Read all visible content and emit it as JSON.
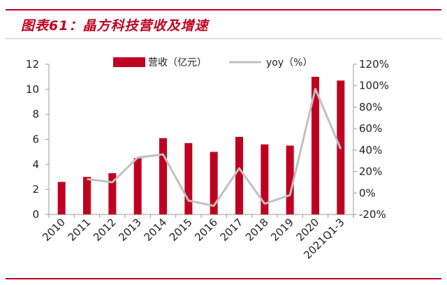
{
  "colors": {
    "accent": "#c00020",
    "bar": "#c00020",
    "line": "#c0c0c0",
    "axis": "#999999"
  },
  "header": {
    "title": "图表61：晶方科技营收及增速"
  },
  "chart_data": {
    "type": "bar",
    "categories": [
      "2010",
      "2011",
      "2012",
      "2013",
      "2014",
      "2015",
      "2016",
      "2017",
      "2018",
      "2019",
      "2020",
      "2021Q1-3"
    ],
    "series": [
      {
        "name": "营收（亿元）",
        "type": "bar",
        "axis": "left",
        "values": [
          2.6,
          3.0,
          3.3,
          4.5,
          6.1,
          5.7,
          5.0,
          6.2,
          5.6,
          5.5,
          11.0,
          10.7
        ]
      },
      {
        "name": "yoy（%）",
        "type": "line",
        "axis": "right",
        "values": [
          null,
          13,
          10,
          33,
          36,
          -7,
          -12,
          23,
          -10,
          -2,
          97,
          41
        ]
      }
    ],
    "y_left": {
      "min": 0,
      "max": 12,
      "ticks": [
        "0",
        "2",
        "4",
        "6",
        "8",
        "10",
        "12"
      ]
    },
    "y_right": {
      "min": -20,
      "max": 120,
      "ticks": [
        "-20%",
        "0%",
        "20%",
        "40%",
        "60%",
        "80%",
        "100%",
        "120%"
      ]
    },
    "legend_position": "top",
    "grid": false
  }
}
